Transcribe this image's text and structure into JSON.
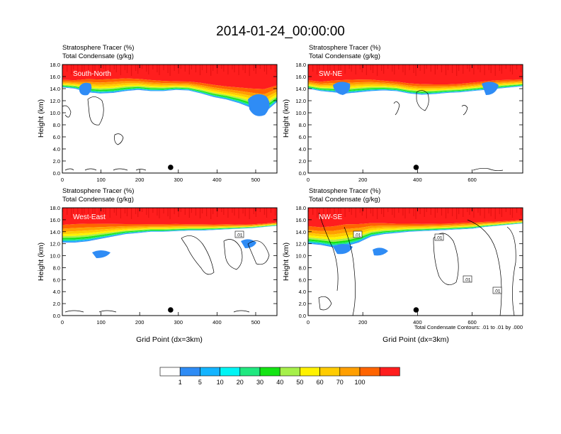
{
  "figure": {
    "title": "2014-01-24_00:00:00",
    "contour_note": "Total Condensate Contours: .01 to .01 by .000"
  },
  "colorbar": {
    "labels": [
      "1",
      "5",
      "10",
      "20",
      "30",
      "40",
      "50",
      "60",
      "70",
      "100"
    ],
    "colors": [
      "#ffffff",
      "#2f8cf5",
      "#14b4ff",
      "#00f5f5",
      "#20e880",
      "#14e414",
      "#a6f04a",
      "#fff200",
      "#ffcc00",
      "#ff9f00",
      "#ff6400",
      "#ff1e1e"
    ]
  },
  "chart_data": [
    {
      "type": "heatmap",
      "panel_label": "South-North",
      "title_line1": "Stratosphere Tracer   (%)",
      "title_line2": "Total Condensate   (g/kg)",
      "ylabel": "Height (km)",
      "xlabel": "",
      "xlim": [
        0,
        555
      ],
      "ylim": [
        0,
        18
      ],
      "xticks": [
        "0",
        "100",
        "200",
        "300",
        "400",
        "500"
      ],
      "yticks": [
        "0.0",
        "2.0",
        "4.0",
        "6.0",
        "8.0",
        "10.0",
        "12.0",
        "14.0",
        "16.0",
        "18.0"
      ],
      "marker_x": 280,
      "tracer_top_km": [
        16.0,
        16.0,
        16.5,
        16.5,
        16.6,
        16.6,
        16.4,
        16.2,
        16.0,
        15.8,
        15.8,
        15.7,
        15.5,
        15.3,
        15.3,
        15.4,
        15.6,
        15.7
      ],
      "tracer_base_km": [
        14.2,
        14.0,
        13.4,
        13.2,
        13.3,
        13.6,
        13.8,
        13.6,
        13.6,
        13.8,
        13.7,
        13.2,
        12.6,
        12.2,
        11.6,
        10.8,
        10.0,
        11.8
      ]
    },
    {
      "type": "heatmap",
      "panel_label": "SW-NE",
      "title_line1": "Stratosphere Tracer   (%)",
      "title_line2": "Total Condensate   (g/kg)",
      "ylabel": "Height (km)",
      "xlabel": "",
      "xlim": [
        0,
        785
      ],
      "ylim": [
        0,
        18
      ],
      "xticks": [
        "0",
        "200",
        "400",
        "600"
      ],
      "yticks": [
        "0.0",
        "2.0",
        "4.0",
        "6.0",
        "8.0",
        "10.0",
        "12.0",
        "14.0",
        "16.0",
        "18.0"
      ],
      "marker_x": 395,
      "tracer_top_km": [
        16.0,
        15.8,
        16.2,
        16.4,
        16.4,
        16.3,
        16.0,
        15.8,
        15.6,
        15.5,
        15.4,
        15.3,
        15.4,
        15.6,
        15.8,
        16.0,
        16.0,
        16.0
      ],
      "tracer_base_km": [
        14.0,
        13.6,
        13.4,
        13.2,
        13.4,
        13.6,
        13.7,
        13.6,
        13.2,
        13.0,
        13.1,
        13.3,
        13.4,
        13.6,
        13.8,
        14.0,
        14.2,
        14.4
      ]
    },
    {
      "type": "heatmap",
      "panel_label": "West-East",
      "title_line1": "Stratosphere Tracer   (%)",
      "title_line2": "Total Condensate   (g/kg)",
      "ylabel": "Height (km)",
      "xlabel": "Grid Point (dx=3km)",
      "xlim": [
        0,
        555
      ],
      "ylim": [
        0,
        18
      ],
      "xticks": [
        "0",
        "100",
        "200",
        "300",
        "400",
        "500"
      ],
      "yticks": [
        "0.0",
        "2.0",
        "4.0",
        "6.0",
        "8.0",
        "10.0",
        "12.0",
        "14.0",
        "16.0",
        "18.0"
      ],
      "marker_x": 280,
      "contour_labels": [
        ".01"
      ],
      "tracer_top_km": [
        16.4,
        16.6,
        16.6,
        16.4,
        16.2,
        16.0,
        15.9,
        15.8,
        15.8,
        15.8,
        15.7,
        15.7,
        15.6,
        15.6,
        15.5,
        15.5,
        15.6,
        15.8
      ],
      "tracer_base_km": [
        12.2,
        12.2,
        12.4,
        12.8,
        13.2,
        13.6,
        13.8,
        14.0,
        14.0,
        14.1,
        14.2,
        14.2,
        14.3,
        14.4,
        14.5,
        14.6,
        14.8,
        15.0
      ]
    },
    {
      "type": "heatmap",
      "panel_label": "NW-SE",
      "title_line1": "Stratosphere Tracer   (%)",
      "title_line2": "Total Condensate   (g/kg)",
      "ylabel": "Height (km)",
      "xlabel": "Grid Point (dx=3km)",
      "xlim": [
        0,
        785
      ],
      "ylim": [
        0,
        18
      ],
      "xticks": [
        "0",
        "200",
        "400",
        "600"
      ],
      "yticks": [
        "0.0",
        "2.0",
        "4.0",
        "6.0",
        "8.0",
        "10.0",
        "12.0",
        "14.0",
        "16.0",
        "18.0"
      ],
      "marker_x": 395,
      "contour_labels": [
        ".01",
        ".01",
        ".01",
        ".01"
      ],
      "tracer_top_km": [
        16.2,
        16.0,
        16.4,
        16.8,
        16.6,
        16.4,
        16.2,
        16.0,
        15.9,
        15.8,
        15.8,
        15.8,
        15.9,
        16.0,
        16.0,
        16.0,
        16.1,
        16.2
      ],
      "tracer_base_km": [
        12.0,
        11.8,
        11.4,
        11.6,
        12.2,
        13.2,
        13.6,
        13.8,
        14.0,
        14.1,
        14.2,
        14.3,
        14.4,
        14.5,
        14.8,
        15.0,
        15.2,
        15.4
      ]
    }
  ]
}
